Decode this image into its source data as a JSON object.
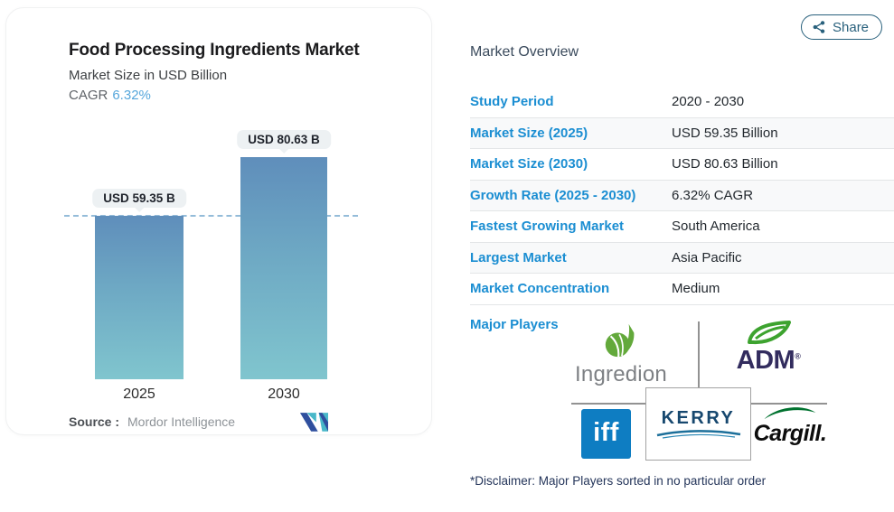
{
  "share": {
    "label": "Share"
  },
  "chart_card": {
    "title": "Food Processing Ingredients Market",
    "subtitle": "Market Size in USD Billion",
    "cagr_label": "CAGR",
    "cagr_value": "6.32%",
    "source_label": "Source :",
    "source_value": "Mordor Intelligence"
  },
  "chart_data": {
    "type": "bar",
    "title": "Food Processing Ingredients Market",
    "subtitle": "Market Size in USD Billion",
    "unit": "USD Billion",
    "cagr_percent": 6.32,
    "categories": [
      "2025",
      "2030"
    ],
    "values": [
      59.35,
      80.63
    ],
    "bar_labels": [
      "USD 59.35 B",
      "USD 80.63 B"
    ],
    "reference_line": {
      "value": 59.35,
      "style": "dashed",
      "note": "level of 2025 bar"
    },
    "ylim": [
      0,
      85
    ],
    "grid": false,
    "legend": "none",
    "colors": {
      "bar_gradient_top": "#5f8ebb",
      "bar_gradient_bottom": "#80c5ce",
      "reference_line": "#94bcd9"
    }
  },
  "overview": {
    "heading": "Market Overview",
    "rows": [
      {
        "label": "Study Period",
        "value": "2020 - 2030"
      },
      {
        "label": "Market Size (2025)",
        "value": "USD 59.35 Billion"
      },
      {
        "label": "Market Size (2030)",
        "value": "USD 80.63 Billion"
      },
      {
        "label": "Growth Rate (2025 - 2030)",
        "value": "6.32% CAGR"
      },
      {
        "label": "Fastest Growing Market",
        "value": "South America"
      },
      {
        "label": "Largest Market",
        "value": "Asia Pacific"
      },
      {
        "label": "Market Concentration",
        "value": "Medium"
      }
    ],
    "major_players_label": "Major Players",
    "major_players": {
      "ingredion": "Ingredion",
      "adm": "ADM",
      "iff": "iff",
      "kerry": "KERRY",
      "cargill": "Cargill."
    },
    "disclaimer": "*Disclaimer: Major Players sorted in no particular order"
  },
  "colors": {
    "link_blue": "#1b8ed2",
    "accent_blue": "#55a6db",
    "share_teal": "#28607c",
    "iff_blue": "#0e7dc2",
    "adm_navy": "#322c5e",
    "ingredion_green": "#63a93b",
    "cargill_green": "#00722f",
    "kerry_navy": "#17486f"
  }
}
